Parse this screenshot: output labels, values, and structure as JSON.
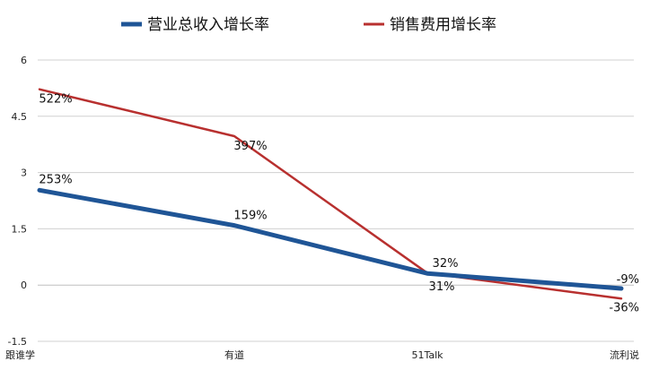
{
  "chart_data": {
    "type": "line",
    "categories": [
      "跟谁学",
      "有道",
      "51Talk",
      "流利说"
    ],
    "series": [
      {
        "name": "营业总收入增长率",
        "values": [
          2.53,
          1.59,
          0.31,
          -0.09
        ],
        "labels": [
          "253%",
          "159%",
          "31%",
          "-9%"
        ],
        "color": "#1f5596"
      },
      {
        "name": "销售费用增长率",
        "values": [
          5.22,
          3.97,
          0.32,
          -0.36
        ],
        "labels": [
          "522%",
          "397%",
          "32%",
          "-36%"
        ],
        "color": "#b8302f"
      }
    ],
    "ylim": [
      -1.5,
      6
    ],
    "yticks": [
      "-1.5",
      "0",
      "1.5",
      "3",
      "4.5",
      "6"
    ],
    "grid": true,
    "legend_position": "top"
  }
}
